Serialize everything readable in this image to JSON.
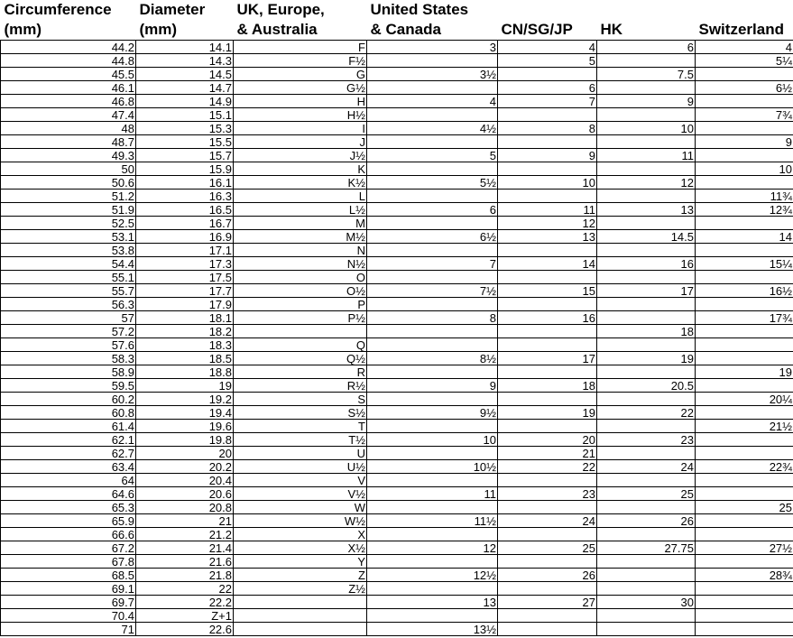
{
  "table": {
    "columns": [
      [
        "Circumference",
        "(mm)"
      ],
      [
        "Diameter",
        "(mm)"
      ],
      [
        "UK, Europe,",
        "& Australia"
      ],
      [
        "United States",
        "& Canada"
      ],
      [
        null,
        "CN/SG/JP"
      ],
      [
        null,
        "HK"
      ],
      [
        null,
        "Switzerland"
      ]
    ],
    "rows": [
      [
        "44.2",
        "14.1",
        "F",
        "3",
        "4",
        "6",
        "4"
      ],
      [
        "44.8",
        "14.3",
        "F½",
        null,
        "5",
        null,
        "5¼"
      ],
      [
        "45.5",
        "14.5",
        "G",
        "3½",
        null,
        "7.5",
        null
      ],
      [
        "46.1",
        "14.7",
        "G½",
        null,
        "6",
        null,
        "6½"
      ],
      [
        "46.8",
        "14.9",
        "H",
        "4",
        "7",
        "9",
        null
      ],
      [
        "47.4",
        "15.1",
        "H½",
        null,
        null,
        null,
        "7¾"
      ],
      [
        "48",
        "15.3",
        "I",
        "4½",
        "8",
        "10",
        null
      ],
      [
        "48.7",
        "15.5",
        "J",
        null,
        null,
        null,
        "9"
      ],
      [
        "49.3",
        "15.7",
        "J½",
        "5",
        "9",
        "11",
        null
      ],
      [
        "50",
        "15.9",
        "K",
        null,
        null,
        null,
        "10"
      ],
      [
        "50.6",
        "16.1",
        "K½",
        "5½",
        "10",
        "12",
        null
      ],
      [
        "51.2",
        "16.3",
        "L",
        null,
        null,
        null,
        "11¾"
      ],
      [
        "51.9",
        "16.5",
        "L½",
        "6",
        "11",
        "13",
        "12¾"
      ],
      [
        "52.5",
        "16.7",
        "M",
        null,
        "12",
        null,
        null
      ],
      [
        "53.1",
        "16.9",
        "M½",
        "6½",
        "13",
        "14.5",
        "14"
      ],
      [
        "53.8",
        "17.1",
        "N",
        null,
        null,
        null,
        null
      ],
      [
        "54.4",
        "17.3",
        "N½",
        "7",
        "14",
        "16",
        "15¼"
      ],
      [
        "55.1",
        "17.5",
        "O",
        null,
        null,
        null,
        null
      ],
      [
        "55.7",
        "17.7",
        "O½",
        "7½",
        "15",
        "17",
        "16½"
      ],
      [
        "56.3",
        "17.9",
        "P",
        null,
        null,
        null,
        null
      ],
      [
        "57",
        "18.1",
        "P½",
        "8",
        "16",
        null,
        "17¾"
      ],
      [
        "57.2",
        "18.2",
        null,
        null,
        null,
        "18",
        null
      ],
      [
        "57.6",
        "18.3",
        "Q",
        null,
        null,
        null,
        null
      ],
      [
        "58.3",
        "18.5",
        "Q½",
        "8½",
        "17",
        "19",
        null
      ],
      [
        "58.9",
        "18.8",
        "R",
        null,
        null,
        null,
        "19"
      ],
      [
        "59.5",
        "19",
        "R½",
        "9",
        "18",
        "20.5",
        null
      ],
      [
        "60.2",
        "19.2",
        "S",
        null,
        null,
        null,
        "20¼"
      ],
      [
        "60.8",
        "19.4",
        "S½",
        "9½",
        "19",
        "22",
        null
      ],
      [
        "61.4",
        "19.6",
        "T",
        null,
        null,
        null,
        "21½"
      ],
      [
        "62.1",
        "19.8",
        "T½",
        "10",
        "20",
        "23",
        null
      ],
      [
        "62.7",
        "20",
        "U",
        null,
        "21",
        null,
        null
      ],
      [
        "63.4",
        "20.2",
        "U½",
        "10½",
        "22",
        "24",
        "22¾"
      ],
      [
        "64",
        "20.4",
        "V",
        null,
        null,
        null,
        null
      ],
      [
        "64.6",
        "20.6",
        "V½",
        "11",
        "23",
        "25",
        null
      ],
      [
        "65.3",
        "20.8",
        "W",
        null,
        null,
        null,
        "25"
      ],
      [
        "65.9",
        "21",
        "W½",
        "11½",
        "24",
        "26",
        null
      ],
      [
        "66.6",
        "21.2",
        "X",
        null,
        null,
        null,
        null
      ],
      [
        "67.2",
        "21.4",
        "X½",
        "12",
        "25",
        "27.75",
        "27½"
      ],
      [
        "67.8",
        "21.6",
        "Y",
        null,
        null,
        null,
        null
      ],
      [
        "68.5",
        "21.8",
        "Z",
        "12½",
        "26",
        null,
        "28¾"
      ],
      [
        "69.1",
        "22",
        "Z½",
        null,
        null,
        null,
        null
      ],
      [
        "69.7",
        "22.2",
        null,
        "13",
        "27",
        "30",
        null
      ],
      [
        "70.4",
        "Z+1",
        null,
        null,
        null,
        null,
        null
      ],
      [
        "71",
        "22.6",
        null,
        "13½",
        null,
        null,
        null
      ]
    ]
  }
}
